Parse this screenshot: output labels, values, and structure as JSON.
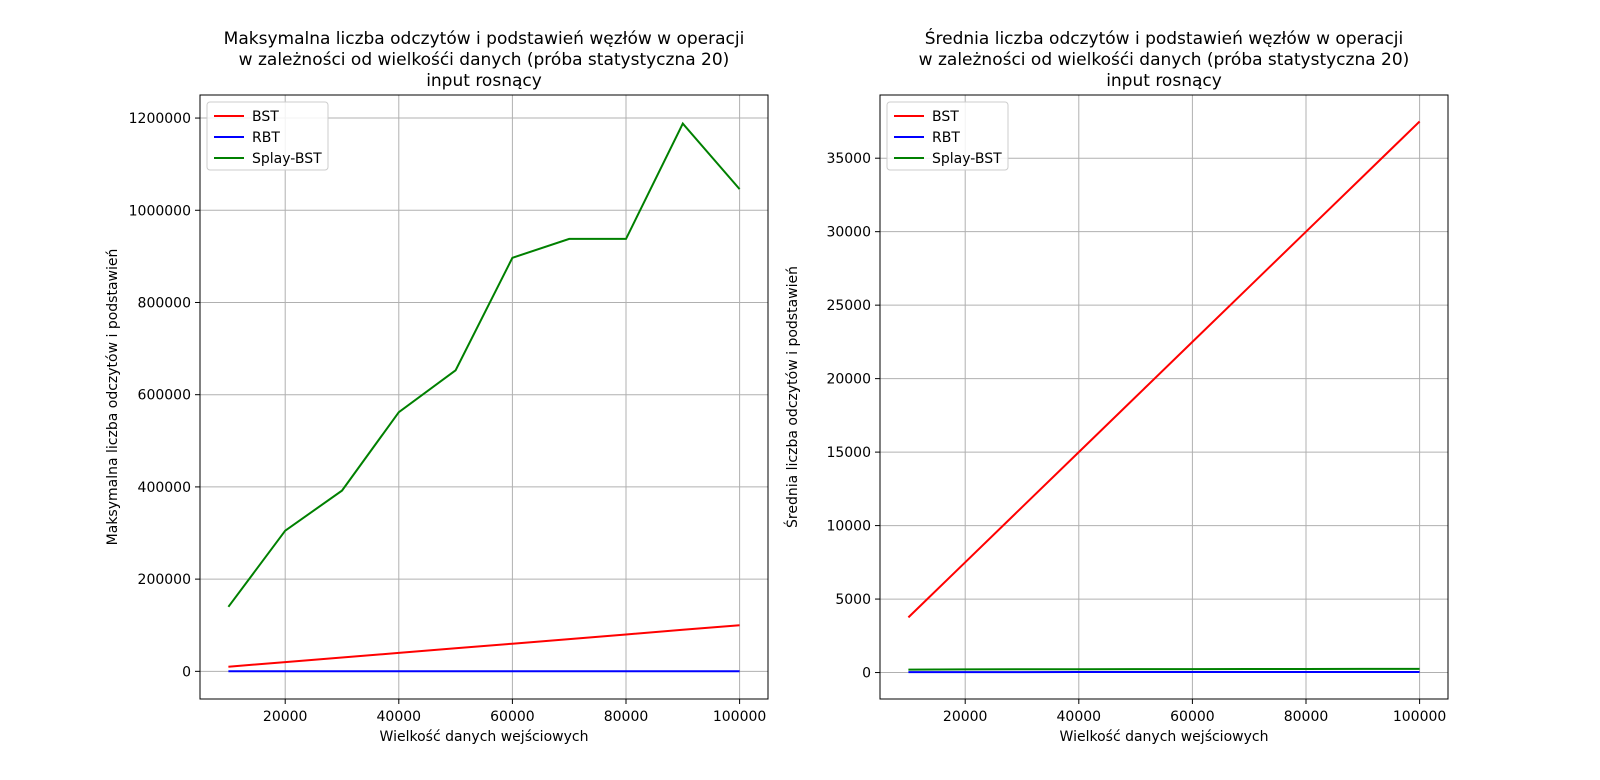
{
  "chart_data": [
    {
      "type": "line",
      "title": [
        "Maksymalna liczba odczytów i podstawień węzłów w operacji",
        "w zależności od wielkośći danych (próba statystyczna 20)",
        "input rosnący"
      ],
      "xlabel": "Wielkość danych wejściowych",
      "ylabel": "Maksymalna liczba odczytów i podstawień",
      "xlim": [
        5000,
        105000
      ],
      "ylim": [
        -60000,
        1250000
      ],
      "xticks": [
        20000,
        40000,
        60000,
        80000,
        100000
      ],
      "yticks": [
        0,
        200000,
        400000,
        600000,
        800000,
        1000000,
        1200000
      ],
      "grid": true,
      "legend_position": "top-left",
      "x": [
        10000,
        20000,
        30000,
        40000,
        50000,
        60000,
        70000,
        80000,
        90000,
        100000
      ],
      "series": [
        {
          "name": "BST",
          "color": "#ff0000",
          "values": [
            10000,
            20000,
            30000,
            40000,
            50000,
            60000,
            70000,
            80000,
            90000,
            100000
          ]
        },
        {
          "name": "RBT",
          "color": "#0000ff",
          "values": [
            100,
            110,
            120,
            125,
            130,
            135,
            140,
            145,
            150,
            150
          ]
        },
        {
          "name": "Splay-BST",
          "color": "#008000",
          "values": [
            140000,
            305000,
            392000,
            562000,
            653000,
            897000,
            938000,
            938000,
            1188000,
            1046000
          ]
        }
      ]
    },
    {
      "type": "line",
      "title": [
        "Średnia liczba odczytów i podstawień węzłów w operacji",
        "w zależności od wielkośći danych (próba statystyczna 20)",
        "input rosnący"
      ],
      "xlabel": "Wielkość danych wejściowych",
      "ylabel": "Średnia liczba odczytów i podstawień",
      "xlim": [
        5000,
        105000
      ],
      "ylim": [
        -1800,
        39300
      ],
      "xticks": [
        20000,
        40000,
        60000,
        80000,
        100000
      ],
      "yticks": [
        0,
        5000,
        10000,
        15000,
        20000,
        25000,
        30000,
        35000
      ],
      "grid": true,
      "legend_position": "top-left",
      "x": [
        10000,
        20000,
        30000,
        40000,
        50000,
        60000,
        70000,
        80000,
        90000,
        100000
      ],
      "series": [
        {
          "name": "BST",
          "color": "#ff0000",
          "values": [
            3750,
            7500,
            11250,
            15000,
            18750,
            22500,
            26250,
            30000,
            33750,
            37500
          ]
        },
        {
          "name": "RBT",
          "color": "#0000ff",
          "values": [
            30,
            32,
            33,
            34,
            35,
            35,
            36,
            36,
            37,
            37
          ]
        },
        {
          "name": "Splay-BST",
          "color": "#008000",
          "values": [
            200,
            215,
            222,
            228,
            232,
            236,
            239,
            242,
            245,
            247
          ]
        }
      ]
    }
  ]
}
